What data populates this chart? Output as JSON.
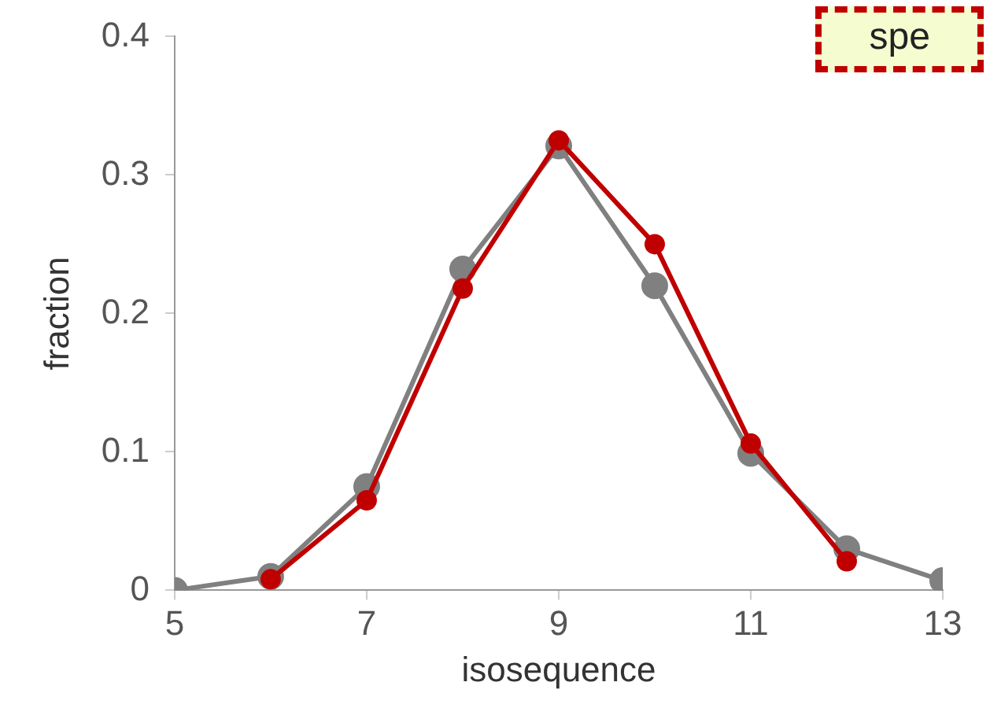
{
  "chart_data": {
    "type": "line",
    "xlabel": "isosequence",
    "ylabel": "fraction",
    "xlim": [
      5,
      13
    ],
    "xticks": [
      5,
      7,
      9,
      11,
      13
    ],
    "ylim": [
      0,
      0.4
    ],
    "yticks": [
      0,
      0.1,
      0.2,
      0.3,
      0.4
    ],
    "grid": false,
    "legend": false,
    "marker": "circle",
    "line_style": "solid",
    "annotations": [
      "spe"
    ],
    "series": [
      {
        "color": "#808080",
        "x": [
          5,
          6,
          7,
          8,
          9,
          10,
          11,
          12,
          13
        ],
        "values": [
          0,
          0.01,
          0.075,
          0.232,
          0.321,
          0.22,
          0.099,
          0.03,
          0.007
        ]
      },
      {
        "color": "#c00000",
        "x": [
          6,
          7,
          8,
          9,
          10,
          11,
          12
        ],
        "values": [
          0.008,
          0.065,
          0.218,
          0.325,
          0.25,
          0.106,
          0.021
        ]
      }
    ]
  }
}
